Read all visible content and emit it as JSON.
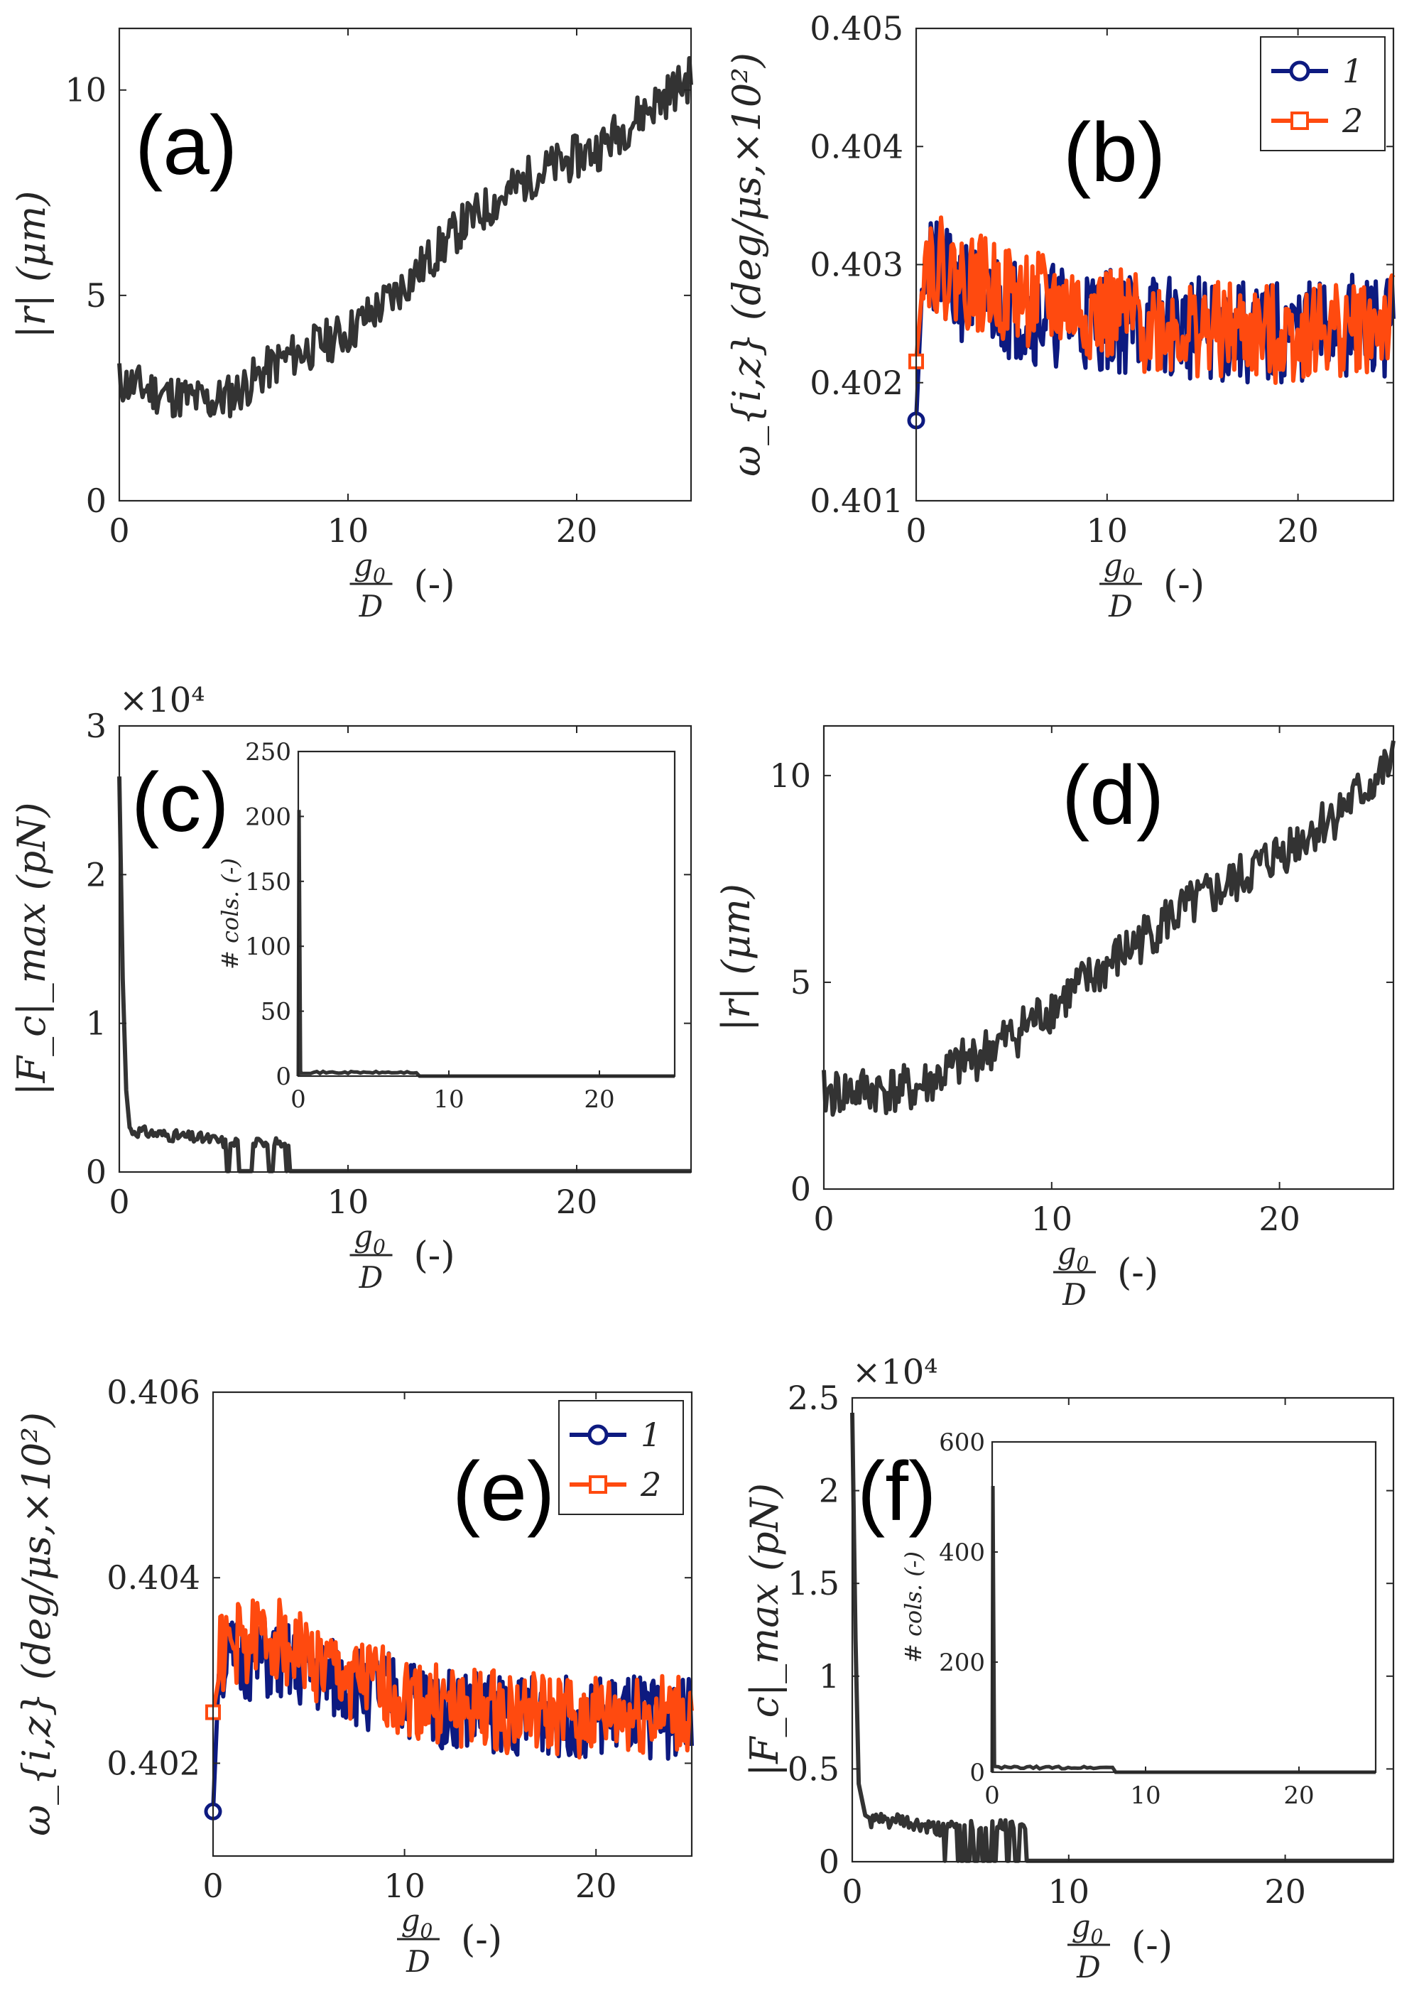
{
  "chart_data": [
    {
      "id": "a",
      "type": "line",
      "panel_label": "(a)",
      "xlabel_num": "g0",
      "xlabel_den": "D",
      "xlabel_suffix": "(-)",
      "ylabel": "|r| (μm)",
      "xlim": [
        0,
        25
      ],
      "ylim": [
        0,
        11.5
      ],
      "xticks": [
        0,
        10,
        20
      ],
      "yticks": [
        0,
        5,
        10
      ],
      "series": [
        {
          "name": "r",
          "color": "#333333",
          "base": [
            [
              0,
              2.9
            ],
            [
              2,
              2.6
            ],
            [
              4,
              2.4
            ],
            [
              5,
              2.6
            ],
            [
              7,
              3.4
            ],
            [
              10,
              4.1
            ],
            [
              12,
              5.0
            ],
            [
              15,
              6.7
            ],
            [
              18,
              7.9
            ],
            [
              21,
              8.6
            ],
            [
              23,
              9.5
            ],
            [
              25,
              10.3
            ]
          ],
          "noise": 0.55,
          "seed": 11
        }
      ]
    },
    {
      "id": "b",
      "type": "line",
      "panel_label": "(b)",
      "xlabel_num": "g0",
      "xlabel_den": "D",
      "xlabel_suffix": "(-)",
      "ylabel": "ω_{i,z} (deg/μs,×10²)",
      "xlim": [
        0,
        25
      ],
      "ylim": [
        0.401,
        0.405
      ],
      "xticks": [
        0,
        10,
        20
      ],
      "yticks": [
        0.401,
        0.402,
        0.403,
        0.404,
        0.405
      ],
      "ytick_labels": [
        "0.401",
        "0.402",
        "0.403",
        "0.404",
        "0.405"
      ],
      "legend": [
        "1",
        "2"
      ],
      "series": [
        {
          "name": "1",
          "color": "#0d1a80",
          "marker": "circle",
          "start_value": 0.40168,
          "base": [
            [
              0.3,
              0.403
            ],
            [
              2,
              0.4028
            ],
            [
              6,
              0.4026
            ],
            [
              12,
              0.4025
            ],
            [
              18,
              0.4024
            ],
            [
              25,
              0.4025
            ]
          ],
          "noise": 0.00045,
          "seed": 21
        },
        {
          "name": "2",
          "color": "#ff4a0f",
          "marker": "square",
          "start_value": 0.40218,
          "base": [
            [
              0.3,
              0.4031
            ],
            [
              2,
              0.4029
            ],
            [
              6,
              0.4027
            ],
            [
              12,
              0.4025
            ],
            [
              18,
              0.4024
            ],
            [
              25,
              0.4025
            ]
          ],
          "noise": 0.00042,
          "seed": 22
        }
      ]
    },
    {
      "id": "c",
      "type": "line",
      "panel_label": "(c)",
      "xlabel_num": "g0",
      "xlabel_den": "D",
      "xlabel_suffix": "(-)",
      "ylabel": "|F_c|_max (pN)",
      "exponent_label": "×10⁴",
      "xlim": [
        0,
        25
      ],
      "ylim": [
        0,
        3
      ],
      "xticks": [
        0,
        10,
        20
      ],
      "yticks": [
        0,
        1,
        2,
        3
      ],
      "series": [
        {
          "name": "Fc",
          "color": "#333333",
          "spike": [
            [
              0,
              2.66
            ],
            [
              0.15,
              1.3
            ],
            [
              0.3,
              0.55
            ],
            [
              0.45,
              0.3
            ]
          ],
          "base": [
            [
              0.5,
              0.28
            ],
            [
              2,
              0.25
            ],
            [
              4,
              0.22
            ],
            [
              4.6,
              0.2
            ]
          ],
          "noise": 0.04,
          "seed": 31,
          "gaps": [
            [
              4.6,
              7.6
            ]
          ],
          "zero_after": 7.6
        }
      ],
      "inset": {
        "ylabel": "# cols. (-)",
        "xlim": [
          0,
          25
        ],
        "ylim": [
          0,
          250
        ],
        "xticks": [
          0,
          10,
          20
        ],
        "yticks": [
          0,
          50,
          100,
          150,
          200,
          250
        ],
        "spike_value": 205,
        "tail_value": 2
      }
    },
    {
      "id": "d",
      "type": "line",
      "panel_label": "(d)",
      "xlabel_num": "g0",
      "xlabel_den": "D",
      "xlabel_suffix": "(-)",
      "ylabel": "|r| (μm)",
      "xlim": [
        0,
        25
      ],
      "ylim": [
        0,
        11.2
      ],
      "xticks": [
        0,
        10,
        20
      ],
      "yticks": [
        0,
        5,
        10
      ],
      "series": [
        {
          "name": "r",
          "color": "#333333",
          "base": [
            [
              0,
              2.3
            ],
            [
              2,
              2.4
            ],
            [
              4,
              2.4
            ],
            [
              6,
              3.0
            ],
            [
              8,
              3.6
            ],
            [
              10,
              4.4
            ],
            [
              12,
              5.2
            ],
            [
              15,
              6.5
            ],
            [
              18,
              7.4
            ],
            [
              21,
              8.5
            ],
            [
              23,
              9.3
            ],
            [
              25,
              10.3
            ]
          ],
          "noise": 0.6,
          "seed": 41
        }
      ]
    },
    {
      "id": "e",
      "type": "line",
      "panel_label": "(e)",
      "xlabel_num": "g0",
      "xlabel_den": "D",
      "xlabel_suffix": "(-)",
      "ylabel": "ω_{i,z} (deg/μs,×10²)",
      "xlim": [
        0,
        25
      ],
      "ylim": [
        0.401,
        0.406
      ],
      "xticks": [
        0,
        10,
        20
      ],
      "yticks": [
        0.402,
        0.404,
        0.406
      ],
      "ytick_labels": [
        "0.402",
        "0.404",
        "0.406"
      ],
      "legend": [
        "1",
        "2"
      ],
      "series": [
        {
          "name": "1",
          "color": "#0d1a80",
          "marker": "circle",
          "start_value": 0.40148,
          "base": [
            [
              0.3,
              0.4031
            ],
            [
              3,
              0.4031
            ],
            [
              6,
              0.4029
            ],
            [
              12,
              0.4026
            ],
            [
              18,
              0.4025
            ],
            [
              25,
              0.4025
            ]
          ],
          "noise": 0.00045,
          "seed": 51
        },
        {
          "name": "2",
          "color": "#ff4a0f",
          "marker": "square",
          "start_value": 0.40255,
          "base": [
            [
              0.3,
              0.4032
            ],
            [
              3,
              0.4034
            ],
            [
              6,
              0.403
            ],
            [
              12,
              0.4026
            ],
            [
              18,
              0.4025
            ],
            [
              25,
              0.4025
            ]
          ],
          "noise": 0.00045,
          "seed": 52
        }
      ]
    },
    {
      "id": "f",
      "type": "line",
      "panel_label": "(f)",
      "xlabel_num": "g0",
      "xlabel_den": "D",
      "xlabel_suffix": "(-)",
      "ylabel": "|F_c|_max (pN)",
      "exponent_label": "×10⁴",
      "xlim": [
        0,
        25
      ],
      "ylim": [
        0,
        2.5
      ],
      "xticks": [
        0,
        10,
        20
      ],
      "yticks": [
        0,
        0.5,
        1,
        1.5,
        2,
        2.5
      ],
      "ytick_labels": [
        "0",
        "0.5",
        "1",
        "1.5",
        "2",
        "2.5"
      ],
      "series": [
        {
          "name": "Fc",
          "color": "#333333",
          "spike": [
            [
              0,
              2.42
            ],
            [
              0.15,
              1.2
            ],
            [
              0.3,
              0.42
            ],
            [
              0.6,
              0.25
            ]
          ],
          "base": [
            [
              0.8,
              0.22
            ],
            [
              2,
              0.22
            ],
            [
              3.5,
              0.18
            ],
            [
              4.2,
              0.17
            ]
          ],
          "noise": 0.04,
          "seed": 61,
          "gaps": [
            [
              4.2,
              8.0
            ]
          ],
          "zero_after": 8.0
        }
      ],
      "inset": {
        "ylabel": "# cols. (-)",
        "xlim": [
          0,
          25
        ],
        "ylim": [
          0,
          600
        ],
        "xticks": [
          0,
          10,
          20
        ],
        "yticks": [
          0,
          200,
          400,
          600
        ],
        "spike_value": 520,
        "tail_value": 6
      }
    }
  ]
}
